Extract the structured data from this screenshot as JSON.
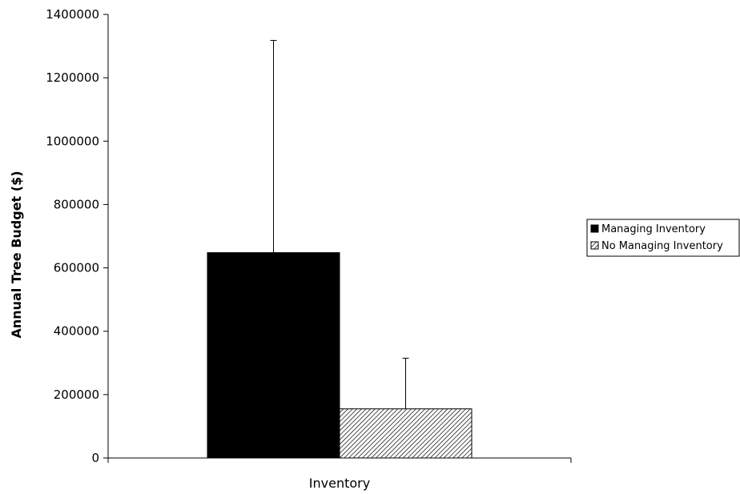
{
  "chart_data": {
    "type": "bar",
    "categories": [
      "Inventory"
    ],
    "xlabel": "Inventory",
    "ylabel": "Annual Tree Budget ($)",
    "ylim": [
      0,
      1400000
    ],
    "yticks": [
      0,
      200000,
      400000,
      600000,
      800000,
      1000000,
      1200000,
      1400000
    ],
    "grid": false,
    "legend_position": "right",
    "series": [
      {
        "name": "Managing Inventory",
        "values": [
          648000
        ],
        "error_plus": [
          670000
        ],
        "fill": "solid",
        "color": "#000000"
      },
      {
        "name": "No Managing Inventory",
        "values": [
          155000
        ],
        "error_plus": [
          160000
        ],
        "fill": "hatched",
        "color": "#000000"
      }
    ]
  }
}
